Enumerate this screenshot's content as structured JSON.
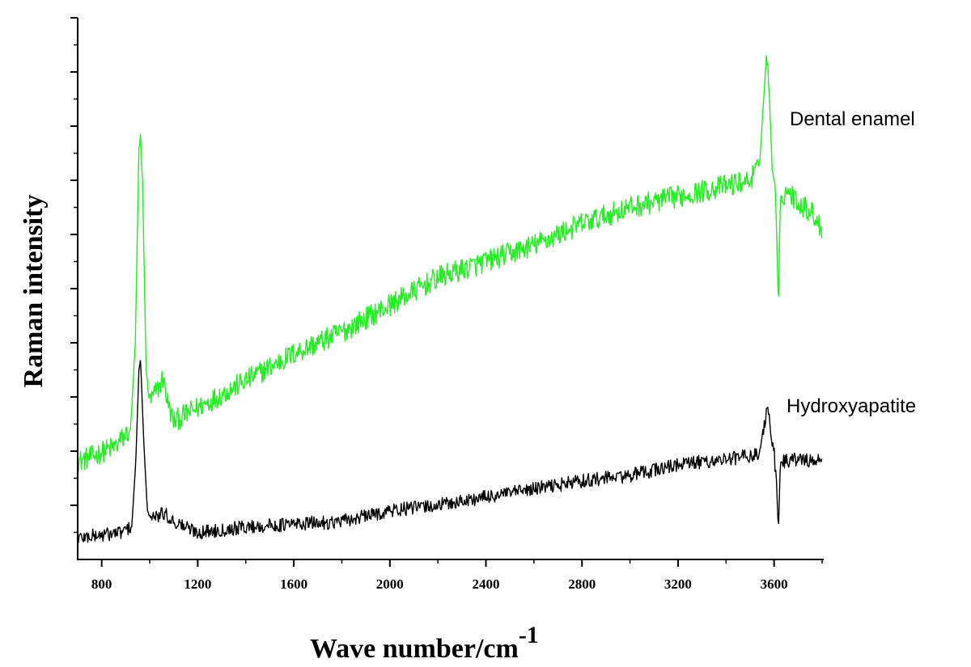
{
  "chart_data": {
    "type": "line",
    "title": "",
    "xlabel": "Wave number/cm",
    "xlabel_superscript": "-1",
    "ylabel": "Raman intensity",
    "xlim": [
      700,
      3800
    ],
    "ylim": [
      0,
      100
    ],
    "x_ticks": [
      800,
      1200,
      1600,
      2000,
      2400,
      2800,
      3200,
      3600
    ],
    "y_ticks_labeled": false,
    "grid": false,
    "legend": "none; series names printed next to curves at right",
    "series": [
      {
        "name": "Dental enamel",
        "color": "#22ee22",
        "label_at": [
          3660,
          82
        ],
        "keypoints": [
          [
            700,
            18
          ],
          [
            760,
            19
          ],
          [
            860,
            21
          ],
          [
            920,
            24
          ],
          [
            940,
            40
          ],
          [
            955,
            76
          ],
          [
            962,
            77
          ],
          [
            970,
            70
          ],
          [
            985,
            35
          ],
          [
            1000,
            29
          ],
          [
            1040,
            32
          ],
          [
            1055,
            33.5
          ],
          [
            1080,
            28
          ],
          [
            1100,
            25.5
          ],
          [
            1200,
            28
          ],
          [
            1400,
            33
          ],
          [
            1600,
            38
          ],
          [
            1800,
            42
          ],
          [
            2000,
            47
          ],
          [
            2200,
            52
          ],
          [
            2400,
            55
          ],
          [
            2600,
            58
          ],
          [
            2800,
            62
          ],
          [
            3000,
            65
          ],
          [
            3200,
            67
          ],
          [
            3400,
            69
          ],
          [
            3500,
            70
          ],
          [
            3540,
            73
          ],
          [
            3555,
            84
          ],
          [
            3568,
            93
          ],
          [
            3580,
            86
          ],
          [
            3592,
            72
          ],
          [
            3605,
            69
          ],
          [
            3612,
            58
          ],
          [
            3618,
            46
          ],
          [
            3626,
            67
          ],
          [
            3660,
            68
          ],
          [
            3700,
            66
          ],
          [
            3760,
            64
          ],
          [
            3800,
            61
          ]
        ]
      },
      {
        "name": "Hydroxyapatite",
        "color": "#000000",
        "label_at": [
          3660,
          28
        ],
        "keypoints": [
          [
            700,
            4
          ],
          [
            800,
            4.5
          ],
          [
            880,
            5
          ],
          [
            925,
            6
          ],
          [
            942,
            18
          ],
          [
            955,
            35
          ],
          [
            962,
            37
          ],
          [
            975,
            22
          ],
          [
            990,
            9
          ],
          [
            1010,
            7.5
          ],
          [
            1060,
            8.5
          ],
          [
            1100,
            7
          ],
          [
            1200,
            5
          ],
          [
            1400,
            6
          ],
          [
            1600,
            6.5
          ],
          [
            1800,
            7
          ],
          [
            2000,
            9
          ],
          [
            2200,
            10
          ],
          [
            2400,
            11.5
          ],
          [
            2600,
            13
          ],
          [
            2800,
            14.5
          ],
          [
            3000,
            15.5
          ],
          [
            3200,
            17.5
          ],
          [
            3400,
            18.5
          ],
          [
            3540,
            19.5
          ],
          [
            3560,
            25
          ],
          [
            3572,
            29
          ],
          [
            3585,
            24
          ],
          [
            3600,
            20
          ],
          [
            3612,
            12
          ],
          [
            3618,
            5
          ],
          [
            3626,
            18
          ],
          [
            3700,
            18.5
          ],
          [
            3800,
            18
          ]
        ]
      }
    ]
  }
}
